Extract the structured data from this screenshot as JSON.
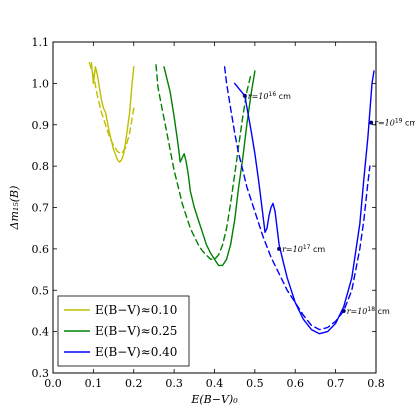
{
  "chart_data": {
    "type": "line",
    "title": "",
    "xlabel": "E(B−V)₀",
    "ylabel": "Δm₁₅(B)",
    "xlim": [
      0.0,
      0.8
    ],
    "ylim": [
      0.3,
      1.1
    ],
    "grid": false,
    "legend_position": "lower-left",
    "x_ticks": [
      "0.0",
      "0.1",
      "0.2",
      "0.3",
      "0.4",
      "0.5",
      "0.6",
      "0.7",
      "0.8"
    ],
    "y_ticks": [
      "0.3",
      "0.4",
      "0.5",
      "0.6",
      "0.7",
      "0.8",
      "0.9",
      "1.0",
      "1.1"
    ],
    "legend": [
      {
        "label": "E(B−V)≈0.10",
        "color": "#bfbf00"
      },
      {
        "label": "E(B−V)≈0.25",
        "color": "#008000"
      },
      {
        "label": "E(B−V)≈0.40",
        "color": "#0000ff"
      }
    ],
    "series": [
      {
        "group": 0,
        "style": "solid",
        "color": "#bfbf00",
        "points": [
          [
            0.095,
            1.05
          ],
          [
            0.1,
            1.0
          ],
          [
            0.105,
            1.04
          ],
          [
            0.11,
            1.02
          ],
          [
            0.115,
            0.99
          ],
          [
            0.12,
            0.96
          ],
          [
            0.125,
            0.94
          ],
          [
            0.13,
            0.93
          ],
          [
            0.14,
            0.88
          ],
          [
            0.15,
            0.84
          ],
          [
            0.16,
            0.815
          ],
          [
            0.165,
            0.81
          ],
          [
            0.17,
            0.815
          ],
          [
            0.175,
            0.83
          ],
          [
            0.18,
            0.86
          ],
          [
            0.19,
            0.93
          ],
          [
            0.195,
            0.99
          ],
          [
            0.2,
            1.04
          ]
        ]
      },
      {
        "group": 0,
        "style": "dashed",
        "color": "#bfbf00",
        "points": [
          [
            0.09,
            1.05
          ],
          [
            0.1,
            1.02
          ],
          [
            0.11,
            0.97
          ],
          [
            0.12,
            0.93
          ],
          [
            0.13,
            0.9
          ],
          [
            0.14,
            0.87
          ],
          [
            0.15,
            0.85
          ],
          [
            0.16,
            0.835
          ],
          [
            0.17,
            0.83
          ],
          [
            0.18,
            0.845
          ],
          [
            0.19,
            0.88
          ],
          [
            0.2,
            0.94
          ]
        ]
      },
      {
        "group": 1,
        "style": "solid",
        "color": "#008000",
        "points": [
          [
            0.275,
            1.04
          ],
          [
            0.29,
            0.98
          ],
          [
            0.3,
            0.92
          ],
          [
            0.31,
            0.85
          ],
          [
            0.315,
            0.81
          ],
          [
            0.32,
            0.82
          ],
          [
            0.325,
            0.83
          ],
          [
            0.33,
            0.81
          ],
          [
            0.335,
            0.78
          ],
          [
            0.34,
            0.74
          ],
          [
            0.35,
            0.7
          ],
          [
            0.36,
            0.67
          ],
          [
            0.37,
            0.64
          ],
          [
            0.38,
            0.61
          ],
          [
            0.39,
            0.59
          ],
          [
            0.4,
            0.575
          ],
          [
            0.41,
            0.56
          ],
          [
            0.42,
            0.56
          ],
          [
            0.43,
            0.575
          ],
          [
            0.44,
            0.61
          ],
          [
            0.45,
            0.67
          ],
          [
            0.46,
            0.75
          ],
          [
            0.47,
            0.82
          ],
          [
            0.48,
            0.9
          ],
          [
            0.49,
            0.97
          ],
          [
            0.5,
            1.03
          ]
        ]
      },
      {
        "group": 1,
        "style": "dashed",
        "color": "#008000",
        "points": [
          [
            0.255,
            1.045
          ],
          [
            0.26,
            0.99
          ],
          [
            0.27,
            0.94
          ],
          [
            0.28,
            0.89
          ],
          [
            0.29,
            0.84
          ],
          [
            0.3,
            0.79
          ],
          [
            0.31,
            0.75
          ],
          [
            0.32,
            0.71
          ],
          [
            0.33,
            0.68
          ],
          [
            0.34,
            0.65
          ],
          [
            0.35,
            0.63
          ],
          [
            0.36,
            0.61
          ],
          [
            0.37,
            0.595
          ],
          [
            0.38,
            0.585
          ],
          [
            0.39,
            0.575
          ],
          [
            0.4,
            0.575
          ],
          [
            0.41,
            0.585
          ],
          [
            0.42,
            0.61
          ],
          [
            0.43,
            0.65
          ],
          [
            0.44,
            0.71
          ],
          [
            0.45,
            0.78
          ],
          [
            0.46,
            0.85
          ],
          [
            0.47,
            0.92
          ],
          [
            0.48,
            0.98
          ],
          [
            0.49,
            1.02
          ]
        ]
      },
      {
        "group": 2,
        "style": "solid",
        "color": "#0000ff",
        "points": [
          [
            0.45,
            1.0
          ],
          [
            0.475,
            0.97
          ],
          [
            0.49,
            0.89
          ],
          [
            0.5,
            0.83
          ],
          [
            0.51,
            0.76
          ],
          [
            0.52,
            0.68
          ],
          [
            0.525,
            0.64
          ],
          [
            0.53,
            0.65
          ],
          [
            0.535,
            0.68
          ],
          [
            0.54,
            0.7
          ],
          [
            0.545,
            0.71
          ],
          [
            0.55,
            0.69
          ],
          [
            0.555,
            0.65
          ],
          [
            0.56,
            0.61
          ],
          [
            0.57,
            0.57
          ],
          [
            0.58,
            0.53
          ],
          [
            0.6,
            0.47
          ],
          [
            0.62,
            0.43
          ],
          [
            0.64,
            0.405
          ],
          [
            0.66,
            0.395
          ],
          [
            0.68,
            0.4
          ],
          [
            0.7,
            0.42
          ],
          [
            0.72,
            0.46
          ],
          [
            0.74,
            0.53
          ],
          [
            0.76,
            0.66
          ],
          [
            0.77,
            0.77
          ],
          [
            0.78,
            0.87
          ],
          [
            0.79,
            1.0
          ],
          [
            0.795,
            1.03
          ]
        ]
      },
      {
        "group": 2,
        "style": "dashed",
        "color": "#0000ff",
        "points": [
          [
            0.425,
            1.04
          ],
          [
            0.43,
            1.0
          ],
          [
            0.44,
            0.94
          ],
          [
            0.45,
            0.88
          ],
          [
            0.46,
            0.83
          ],
          [
            0.47,
            0.79
          ],
          [
            0.48,
            0.75
          ],
          [
            0.5,
            0.69
          ],
          [
            0.52,
            0.63
          ],
          [
            0.54,
            0.58
          ],
          [
            0.56,
            0.54
          ],
          [
            0.58,
            0.5
          ],
          [
            0.6,
            0.47
          ],
          [
            0.62,
            0.44
          ],
          [
            0.64,
            0.415
          ],
          [
            0.66,
            0.405
          ],
          [
            0.68,
            0.41
          ],
          [
            0.7,
            0.425
          ],
          [
            0.72,
            0.45
          ],
          [
            0.74,
            0.5
          ],
          [
            0.76,
            0.6
          ],
          [
            0.77,
            0.67
          ],
          [
            0.78,
            0.76
          ],
          [
            0.785,
            0.8
          ]
        ]
      }
    ],
    "annotations": [
      {
        "x": 0.475,
        "y": 0.97,
        "text": "r=10",
        "exp": "16",
        "unit": " cm"
      },
      {
        "x": 0.56,
        "y": 0.6,
        "text": "r=10",
        "exp": "17",
        "unit": " cm"
      },
      {
        "x": 0.72,
        "y": 0.45,
        "text": "r=10",
        "exp": "18",
        "unit": " cm"
      },
      {
        "x": 0.788,
        "y": 0.905,
        "text": "r=10",
        "exp": "19",
        "unit": " cm"
      }
    ]
  }
}
